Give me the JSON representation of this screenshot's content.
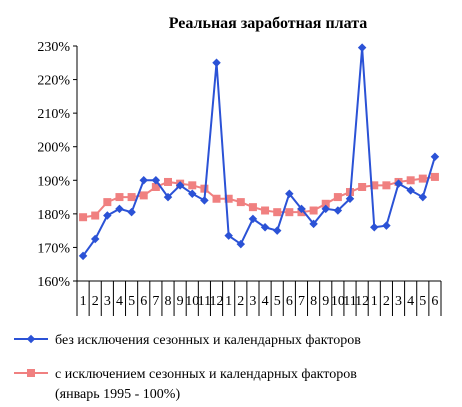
{
  "chart_data": {
    "type": "line",
    "title": "Реальная заработная плата",
    "xlabel": "",
    "ylabel": "",
    "ylim": [
      160,
      230
    ],
    "y_ticks": [
      "160%",
      "170%",
      "180%",
      "190%",
      "200%",
      "210%",
      "220%",
      "230%"
    ],
    "categories": [
      "1",
      "2",
      "3",
      "4",
      "5",
      "6",
      "7",
      "8",
      "9",
      "10",
      "11",
      "12",
      "1",
      "2",
      "3",
      "4",
      "5",
      "6",
      "7",
      "8",
      "9",
      "10",
      "11",
      "12",
      "1",
      "2",
      "3",
      "4",
      "5",
      "6"
    ],
    "grid": false,
    "legend_position": "bottom",
    "series": [
      {
        "name": "без исключения сезонных и календарных факторов",
        "color": "#2b52d6",
        "marker": "diamond",
        "values": [
          167.5,
          172.5,
          179.5,
          181.5,
          180.5,
          190,
          190,
          185,
          188.5,
          186,
          184,
          225,
          173.5,
          171,
          178.5,
          176,
          175,
          186,
          181.5,
          177,
          181.5,
          181,
          184.5,
          229.5,
          176,
          176.5,
          189,
          187,
          185,
          197
        ]
      },
      {
        "name": "с исключением сезонных и календарных факторов",
        "name_line2": "(январь 1995 - 100%)",
        "color": "#f08080",
        "marker": "square",
        "values": [
          179,
          179.5,
          183.5,
          185,
          185,
          185.5,
          188,
          189.5,
          189,
          188.5,
          187.5,
          184.5,
          184.5,
          183.5,
          182,
          181,
          180.5,
          180.5,
          180.5,
          181,
          183,
          185,
          186.5,
          188,
          188.5,
          188.5,
          189.5,
          190,
          190.5,
          191
        ]
      }
    ]
  }
}
